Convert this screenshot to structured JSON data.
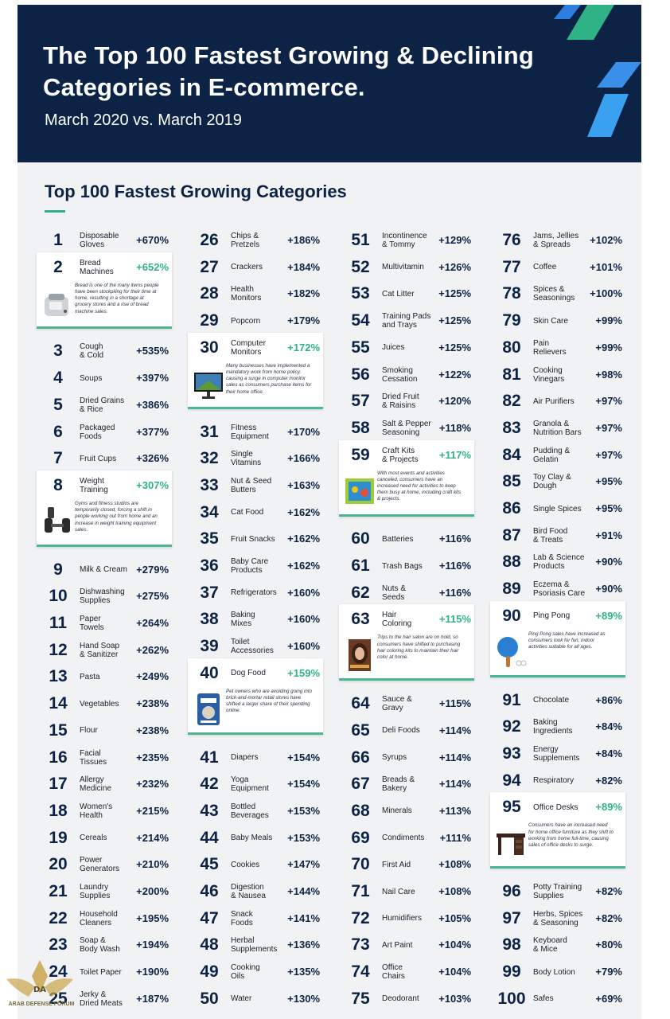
{
  "header": {
    "title": "The Top 100 Fastest Growing & Declining Categories in E-commerce.",
    "subtitle": "March 2020 vs. March 2019"
  },
  "section": {
    "title": "Top 100 Fastest Growing Categories"
  },
  "columns": [
    [
      {
        "rank": "1",
        "name": "Disposable\nGloves",
        "pct": "+670%"
      },
      {
        "rank": "2",
        "name": "Bread\nMachines",
        "pct": "+652%",
        "card": true,
        "icon": "bread-machine-image",
        "desc": "Bread is one of the many items people have been stockpiling for their time at home, resulting in a shortage at grocery stores and a rise of bread machine sales."
      },
      {
        "rank": "3",
        "name": "Cough\n& Cold",
        "pct": "+535%"
      },
      {
        "rank": "4",
        "name": "Soups",
        "pct": "+397%"
      },
      {
        "rank": "5",
        "name": "Dried Grains\n& Rice",
        "pct": "+386%"
      },
      {
        "rank": "6",
        "name": "Packaged\nFoods",
        "pct": "+377%"
      },
      {
        "rank": "7",
        "name": "Fruit Cups",
        "pct": "+326%"
      },
      {
        "rank": "8",
        "name": "Weight\nTraining",
        "pct": "+307%",
        "card": true,
        "icon": "dumbbell-image",
        "desc": "Gyms and fitness studios are temporarily closed, forcing a shift in people working out from home and an increase in weight training equipment sales."
      },
      {
        "rank": "9",
        "name": "Milk & Cream",
        "pct": "+279%"
      },
      {
        "rank": "10",
        "name": "Dishwashing\nSupplies",
        "pct": "+275%"
      },
      {
        "rank": "11",
        "name": "Paper\nTowels",
        "pct": "+264%"
      },
      {
        "rank": "12",
        "name": "Hand Soap\n& Sanitizer",
        "pct": "+262%"
      },
      {
        "rank": "13",
        "name": "Pasta",
        "pct": "+249%"
      },
      {
        "rank": "14",
        "name": "Vegetables",
        "pct": "+238%"
      },
      {
        "rank": "15",
        "name": "Flour",
        "pct": "+238%"
      },
      {
        "rank": "16",
        "name": "Facial\nTissues",
        "pct": "+235%"
      },
      {
        "rank": "17",
        "name": "Allergy\nMedicine",
        "pct": "+232%"
      },
      {
        "rank": "18",
        "name": "Women's\nHealth",
        "pct": "+215%"
      },
      {
        "rank": "19",
        "name": "Cereals",
        "pct": "+214%"
      },
      {
        "rank": "20",
        "name": "Power\nGenerators",
        "pct": "+210%"
      },
      {
        "rank": "21",
        "name": "Laundry\nSupplies",
        "pct": "+200%"
      },
      {
        "rank": "22",
        "name": "Household\nCleaners",
        "pct": "+195%"
      },
      {
        "rank": "23",
        "name": "Soap &\nBody Wash",
        "pct": "+194%"
      },
      {
        "rank": "24",
        "name": "Toilet Paper",
        "pct": "+190%"
      },
      {
        "rank": "25",
        "name": "Jerky &\nDried Meats",
        "pct": "+187%"
      }
    ],
    [
      {
        "rank": "26",
        "name": "Chips &\nPretzels",
        "pct": "+186%"
      },
      {
        "rank": "27",
        "name": "Crackers",
        "pct": "+184%"
      },
      {
        "rank": "28",
        "name": "Health\nMonitors",
        "pct": "+182%"
      },
      {
        "rank": "29",
        "name": "Popcorn",
        "pct": "+179%"
      },
      {
        "rank": "30",
        "name": "Computer\nMonitors",
        "pct": "+172%",
        "card": true,
        "icon": "monitor-image",
        "desc": "Many businesses have implemented a mandatory work from home policy, causing a surge in computer monitor sales as consumers purchase items for their home office."
      },
      {
        "rank": "31",
        "name": "Fitness\nEquipment",
        "pct": "+170%"
      },
      {
        "rank": "32",
        "name": "Single\nVitamins",
        "pct": "+166%"
      },
      {
        "rank": "33",
        "name": "Nut & Seed\nButters",
        "pct": "+163%"
      },
      {
        "rank": "34",
        "name": "Cat Food",
        "pct": "+162%"
      },
      {
        "rank": "35",
        "name": "Fruit Snacks",
        "pct": "+162%"
      },
      {
        "rank": "36",
        "name": "Baby Care\nProducts",
        "pct": "+162%"
      },
      {
        "rank": "37",
        "name": "Refrigerators",
        "pct": "+160%"
      },
      {
        "rank": "38",
        "name": "Baking\nMixes",
        "pct": "+160%"
      },
      {
        "rank": "39",
        "name": "Toilet\nAccessories",
        "pct": "+160%"
      },
      {
        "rank": "40",
        "name": "Dog Food",
        "pct": "+159%",
        "card": true,
        "icon": "dog-food-bag-image",
        "desc": "Pet owners who are avoiding going into brick-and-mortar retail stores have shifted a larger share of their spending online."
      },
      {
        "rank": "41",
        "name": "Diapers",
        "pct": "+154%"
      },
      {
        "rank": "42",
        "name": "Yoga\nEquipment",
        "pct": "+154%"
      },
      {
        "rank": "43",
        "name": "Bottled\nBeverages",
        "pct": "+153%"
      },
      {
        "rank": "44",
        "name": "Baby Meals",
        "pct": "+153%"
      },
      {
        "rank": "45",
        "name": "Cookies",
        "pct": "+147%"
      },
      {
        "rank": "46",
        "name": "Digestion\n& Nausea",
        "pct": "+144%"
      },
      {
        "rank": "47",
        "name": "Snack\nFoods",
        "pct": "+141%"
      },
      {
        "rank": "48",
        "name": "Herbal\nSupplements",
        "pct": "+136%"
      },
      {
        "rank": "49",
        "name": "Cooking\nOils",
        "pct": "+135%"
      },
      {
        "rank": "50",
        "name": "Water",
        "pct": "+130%"
      }
    ],
    [
      {
        "rank": "51",
        "name": "Incontinence\n& Tommy",
        "pct": "+129%"
      },
      {
        "rank": "52",
        "name": "Multivitamin",
        "pct": "+126%"
      },
      {
        "rank": "53",
        "name": "Cat Litter",
        "pct": "+125%"
      },
      {
        "rank": "54",
        "name": "Training Pads\nand Trays",
        "pct": "+125%"
      },
      {
        "rank": "55",
        "name": "Juices",
        "pct": "+125%"
      },
      {
        "rank": "56",
        "name": "Smoking\nCessation",
        "pct": "+122%"
      },
      {
        "rank": "57",
        "name": "Dried Fruit\n& Raisins",
        "pct": "+120%"
      },
      {
        "rank": "58",
        "name": "Salt & Pepper\nSeasoning",
        "pct": "+118%"
      },
      {
        "rank": "59",
        "name": "Craft Kits\n& Projects",
        "pct": "+117%",
        "card": true,
        "icon": "craft-kit-image",
        "desc": "With most events and activities canceled, consumers have an increased need for activities to keep them busy at home, including craft kits & projects."
      },
      {
        "rank": "60",
        "name": "Batteries",
        "pct": "+116%"
      },
      {
        "rank": "61",
        "name": "Trash Bags",
        "pct": "+116%"
      },
      {
        "rank": "62",
        "name": "Nuts &\nSeeds",
        "pct": "+116%"
      },
      {
        "rank": "63",
        "name": "Hair\nColoring",
        "pct": "+115%",
        "card": true,
        "icon": "hair-color-box-image",
        "desc": "Trips to the hair salon are on hold, so consumers have shifted to purchasing hair coloring kits to maintain their hair color at home."
      },
      {
        "rank": "64",
        "name": "Sauce &\nGravy",
        "pct": "+115%"
      },
      {
        "rank": "65",
        "name": "Deli Foods",
        "pct": "+114%"
      },
      {
        "rank": "66",
        "name": "Syrups",
        "pct": "+114%"
      },
      {
        "rank": "67",
        "name": "Breads &\nBakery",
        "pct": "+114%"
      },
      {
        "rank": "68",
        "name": "Minerals",
        "pct": "+113%"
      },
      {
        "rank": "69",
        "name": "Condiments",
        "pct": "+111%"
      },
      {
        "rank": "70",
        "name": "First Aid",
        "pct": "+108%"
      },
      {
        "rank": "71",
        "name": "Nail Care",
        "pct": "+108%"
      },
      {
        "rank": "72",
        "name": "Humidifiers",
        "pct": "+105%"
      },
      {
        "rank": "73",
        "name": "Art Paint",
        "pct": "+104%"
      },
      {
        "rank": "74",
        "name": "Office\nChairs",
        "pct": "+104%"
      },
      {
        "rank": "75",
        "name": "Deodorant",
        "pct": "+103%"
      }
    ],
    [
      {
        "rank": "76",
        "name": "Jams, Jellies\n& Spreads",
        "pct": "+102%"
      },
      {
        "rank": "77",
        "name": "Coffee",
        "pct": "+101%"
      },
      {
        "rank": "78",
        "name": "Spices &\nSeasonings",
        "pct": "+100%"
      },
      {
        "rank": "79",
        "name": "Skin Care",
        "pct": "+99%"
      },
      {
        "rank": "80",
        "name": "Pain\nRelievers",
        "pct": "+99%"
      },
      {
        "rank": "81",
        "name": "Cooking\nVinegars",
        "pct": "+98%"
      },
      {
        "rank": "82",
        "name": "Air Purifiers",
        "pct": "+97%"
      },
      {
        "rank": "83",
        "name": "Granola &\nNutrition Bars",
        "pct": "+97%"
      },
      {
        "rank": "84",
        "name": "Pudding &\nGelatin",
        "pct": "+97%"
      },
      {
        "rank": "85",
        "name": "Toy Clay &\nDough",
        "pct": "+95%"
      },
      {
        "rank": "86",
        "name": "Single Spices",
        "pct": "+95%"
      },
      {
        "rank": "87",
        "name": "Bird Food\n& Treats",
        "pct": "+91%"
      },
      {
        "rank": "88",
        "name": "Lab & Science\nProducts",
        "pct": "+90%"
      },
      {
        "rank": "89",
        "name": "Eczema &\nPsoriasis Care",
        "pct": "+90%"
      },
      {
        "rank": "90",
        "name": "Ping Pong",
        "pct": "+89%",
        "card": true,
        "icon": "ping-pong-paddle-image",
        "desc": "Ping Pong sales have increased as consumers look for fun, indoor activities suitable for all ages."
      },
      {
        "rank": "91",
        "name": "Chocolate",
        "pct": "+86%"
      },
      {
        "rank": "92",
        "name": "Baking\nIngredients",
        "pct": "+84%"
      },
      {
        "rank": "93",
        "name": "Energy\nSupplements",
        "pct": "+84%"
      },
      {
        "rank": "94",
        "name": "Respiratory",
        "pct": "+82%"
      },
      {
        "rank": "95",
        "name": "Office Desks",
        "pct": "+89%",
        "card": true,
        "icon": "office-desk-image",
        "desc": "Consumers have an increased need for home office furniture as they shift to working from home full-time, causing sales of office desks to surge."
      },
      {
        "rank": "96",
        "name": "Potty Training\nSupplies",
        "pct": "+82%"
      },
      {
        "rank": "97",
        "name": "Herbs, Spices\n& Seasoning",
        "pct": "+82%"
      },
      {
        "rank": "98",
        "name": "Keyboard\n& Mice",
        "pct": "+80%"
      },
      {
        "rank": "99",
        "name": "Body Lotion",
        "pct": "+79%"
      },
      {
        "rank": "100",
        "name": "Safes",
        "pct": "+69%"
      }
    ]
  ],
  "watermark": {
    "text": "ARAB DEFENSE FORUM"
  }
}
